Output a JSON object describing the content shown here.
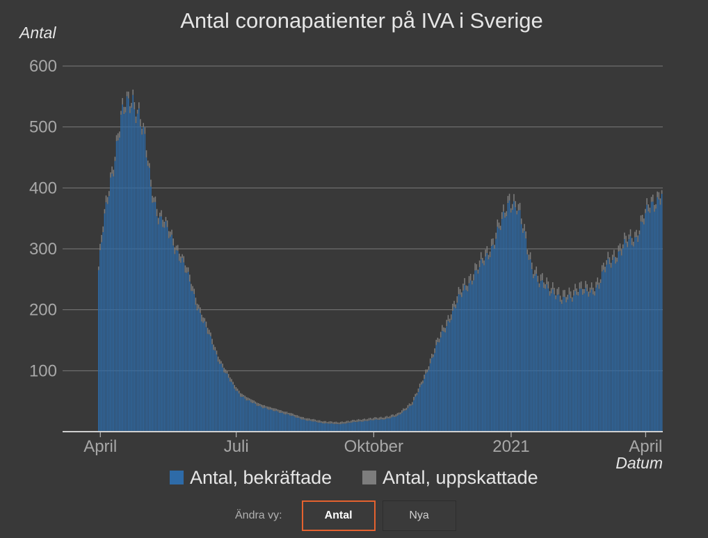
{
  "chart_data": {
    "type": "bar",
    "title": "Antal coronapatienter på IVA i Sverige",
    "ylabel": "Antal",
    "xlabel": "Datum",
    "ylim": [
      0,
      600
    ],
    "yticks": [
      "100",
      "200",
      "300",
      "400",
      "500",
      "600"
    ],
    "xticks": [
      {
        "label": "April",
        "day_index": 1
      },
      {
        "label": "Juli",
        "day_index": 92
      },
      {
        "label": "Oktober",
        "day_index": 184
      },
      {
        "label": "2021",
        "day_index": 276
      },
      {
        "label": "April",
        "day_index": 366
      }
    ],
    "x_range_days": [
      0,
      377
    ],
    "series": [
      {
        "name": "Antal, bekräftade",
        "color": "#2e6ba8"
      },
      {
        "name": "Antal, uppskattade",
        "color": "#7d7d7d"
      }
    ],
    "estimated_gap_approx": 12,
    "anchor_days": [
      0,
      3,
      8,
      12,
      15,
      19,
      23,
      27,
      31,
      35,
      40,
      45,
      50,
      55,
      60,
      65,
      70,
      75,
      80,
      85,
      90,
      95,
      100,
      105,
      110,
      115,
      120,
      130,
      140,
      150,
      160,
      170,
      180,
      190,
      200,
      210,
      215,
      220,
      225,
      230,
      235,
      240,
      245,
      250,
      255,
      260,
      265,
      270,
      275,
      280,
      285,
      290,
      295,
      300,
      305,
      310,
      315,
      320,
      325,
      330,
      335,
      340,
      345,
      350,
      355,
      360,
      365,
      370,
      377
    ],
    "anchor_values": [
      265,
      330,
      410,
      470,
      510,
      530,
      545,
      520,
      470,
      400,
      355,
      330,
      310,
      285,
      250,
      215,
      180,
      150,
      120,
      95,
      75,
      60,
      50,
      45,
      40,
      35,
      33,
      25,
      18,
      14,
      12,
      15,
      18,
      20,
      25,
      45,
      70,
      100,
      130,
      160,
      185,
      210,
      235,
      250,
      265,
      290,
      310,
      340,
      380,
      365,
      320,
      270,
      240,
      235,
      230,
      210,
      220,
      230,
      225,
      230,
      240,
      270,
      285,
      295,
      310,
      320,
      345,
      370,
      390
    ]
  },
  "controls": {
    "label": "Ändra vy:",
    "buttons": [
      "Antal",
      "Nya"
    ]
  }
}
